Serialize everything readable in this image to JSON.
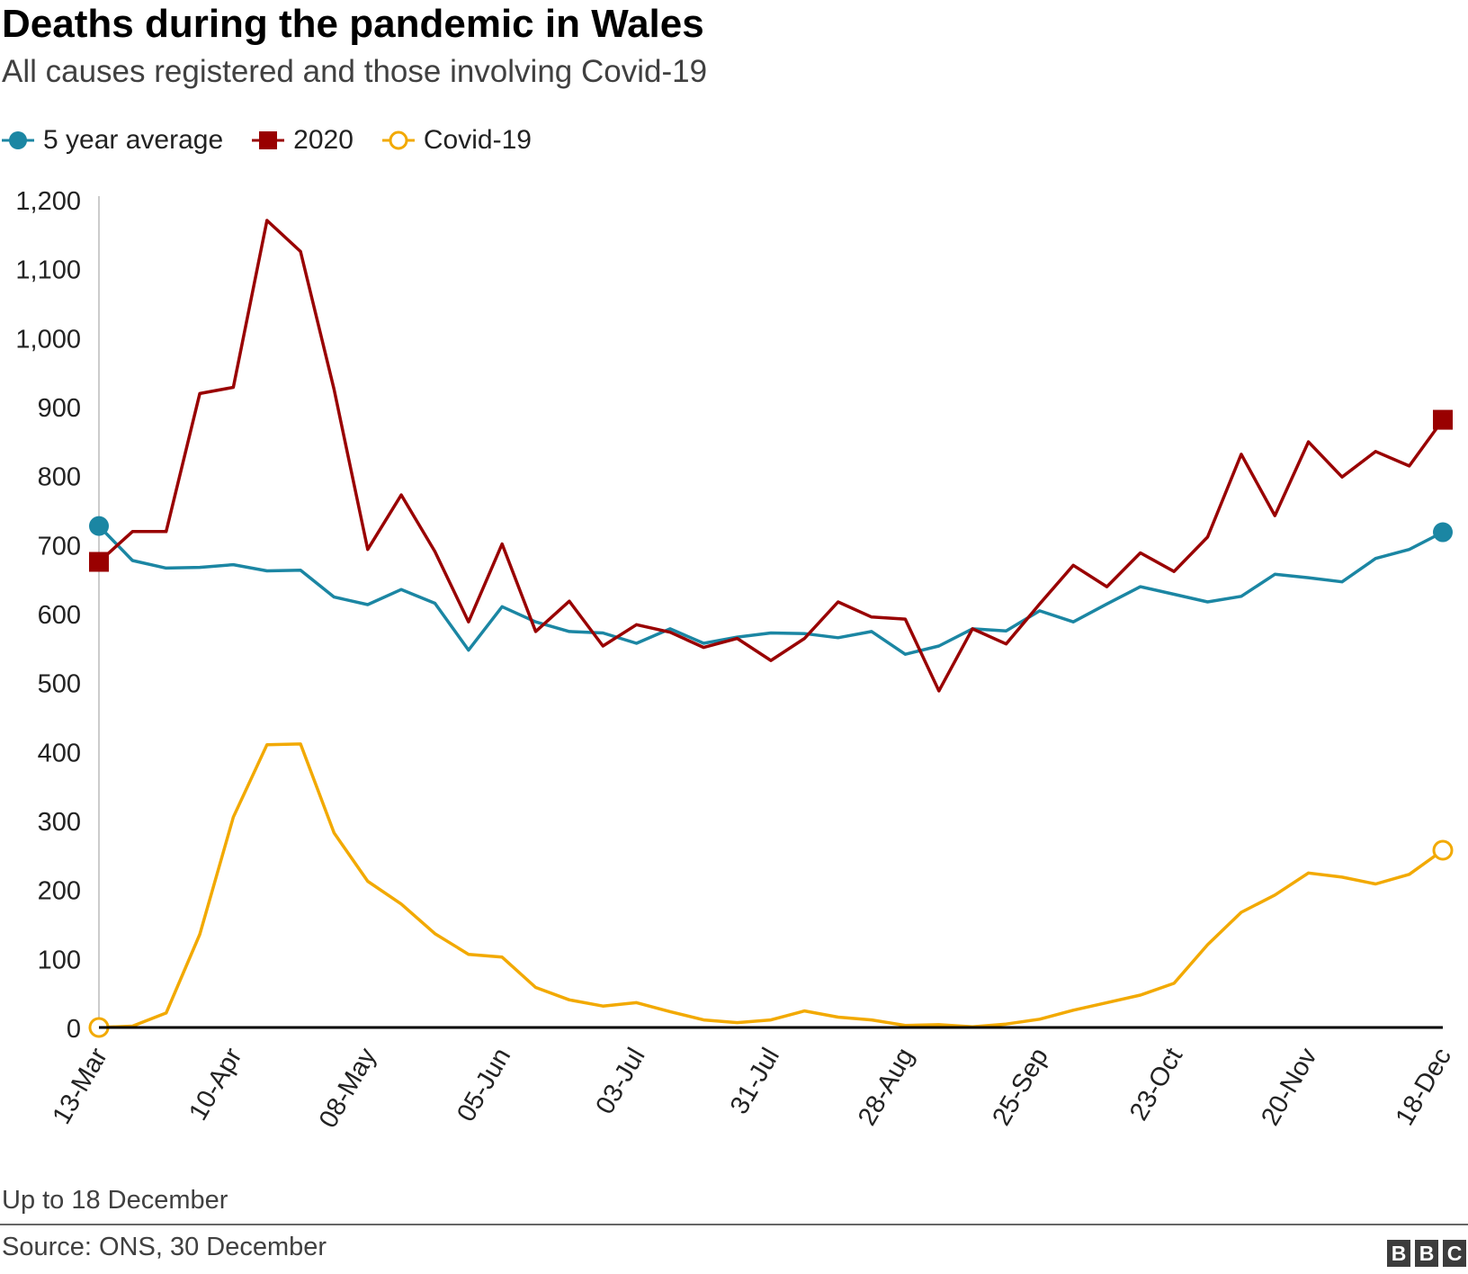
{
  "title": "Deaths during the pandemic in Wales",
  "subtitle": "All causes registered and those involving Covid-19",
  "note": "Up to 18 December",
  "source": "Source: ONS, 30 December",
  "logo": [
    "B",
    "B",
    "C"
  ],
  "colors": {
    "avg": "#1b86a3",
    "y2020": "#990000",
    "covid": "#f2a900",
    "axis": "#000000",
    "gridline": "#cccccc"
  },
  "chart_data": {
    "type": "line",
    "title": "Deaths during the pandemic in Wales",
    "xlabel": "",
    "ylabel": "",
    "ylim": [
      0,
      1200
    ],
    "yticks": [
      0,
      100,
      200,
      300,
      400,
      500,
      600,
      700,
      800,
      900,
      1000,
      1100,
      1200
    ],
    "ytick_labels": [
      "0",
      "100",
      "200",
      "300",
      "400",
      "500",
      "600",
      "700",
      "800",
      "900",
      "1,000",
      "1,100",
      "1,200"
    ],
    "grid": false,
    "legend_position": "top-left",
    "x": [
      "13-Mar",
      "20-Mar",
      "27-Mar",
      "03-Apr",
      "10-Apr",
      "17-Apr",
      "24-Apr",
      "01-May",
      "08-May",
      "15-May",
      "22-May",
      "29-May",
      "05-Jun",
      "12-Jun",
      "19-Jun",
      "26-Jun",
      "03-Jul",
      "10-Jul",
      "17-Jul",
      "24-Jul",
      "31-Jul",
      "07-Aug",
      "14-Aug",
      "21-Aug",
      "28-Aug",
      "04-Sep",
      "11-Sep",
      "18-Sep",
      "25-Sep",
      "02-Oct",
      "09-Oct",
      "16-Oct",
      "23-Oct",
      "30-Oct",
      "06-Nov",
      "13-Nov",
      "20-Nov",
      "27-Nov",
      "04-Dec",
      "11-Dec",
      "18-Dec"
    ],
    "xtick_labels": [
      "13-Mar",
      "10-Apr",
      "08-May",
      "05-Jun",
      "03-Jul",
      "31-Jul",
      "28-Aug",
      "25-Sep",
      "23-Oct",
      "20-Nov",
      "18-Dec"
    ],
    "xtick_index": [
      0,
      4,
      8,
      12,
      16,
      20,
      24,
      28,
      32,
      36,
      40
    ],
    "series": [
      {
        "name": "5 year average",
        "key": "avg",
        "marker": "circle-filled",
        "values": [
          727,
          677,
          666,
          667,
          671,
          662,
          663,
          624,
          613,
          635,
          615,
          547,
          610,
          588,
          574,
          572,
          557,
          578,
          557,
          566,
          572,
          571,
          565,
          574,
          541,
          553,
          578,
          575,
          604,
          588,
          614,
          639,
          628,
          617,
          625,
          657,
          652,
          646,
          680,
          693,
          718
        ]
      },
      {
        "name": "2020",
        "key": "y2020",
        "marker": "square-filled",
        "values": [
          675,
          719,
          719,
          919,
          928,
          1170,
          1125,
          925,
          693,
          772,
          690,
          588,
          701,
          574,
          618,
          553,
          584,
          573,
          551,
          564,
          532,
          564,
          617,
          595,
          592,
          488,
          578,
          556,
          614,
          670,
          639,
          688,
          661,
          711,
          831,
          742,
          849,
          798,
          835,
          814,
          881
        ]
      },
      {
        "name": "Covid-19",
        "key": "covid",
        "marker": "circle-open",
        "values": [
          0,
          2,
          21,
          135,
          305,
          410,
          411,
          282,
          212,
          179,
          136,
          106,
          102,
          58,
          40,
          31,
          36,
          23,
          11,
          7,
          11,
          24,
          15,
          11,
          3,
          4,
          1,
          5,
          12,
          25,
          36,
          47,
          64,
          120,
          167,
          192,
          224,
          218,
          208,
          222,
          257
        ]
      }
    ]
  }
}
